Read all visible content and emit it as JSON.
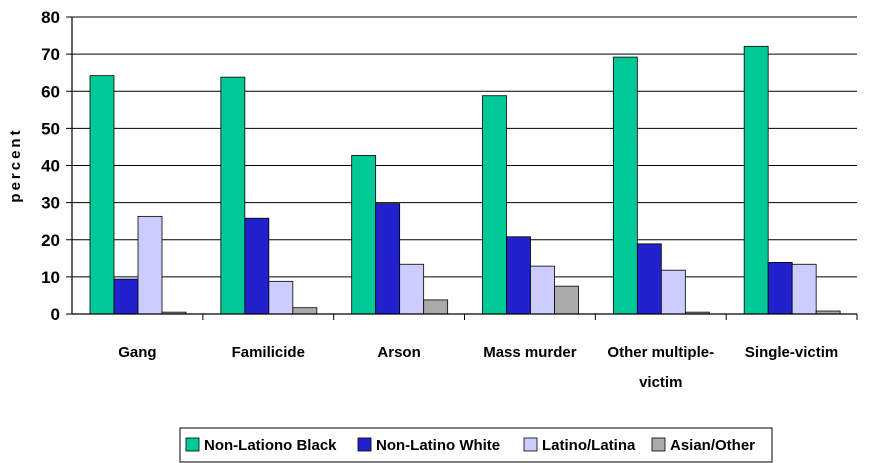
{
  "chart_data": {
    "type": "bar",
    "title": "",
    "xlabel": "",
    "ylabel": "percent",
    "ylim": [
      0,
      80
    ],
    "yticks": [
      0,
      10,
      20,
      30,
      40,
      50,
      60,
      70,
      80
    ],
    "grid": true,
    "legend_position": "bottom",
    "categories": [
      "Gang",
      "Familicide",
      "Arson",
      "Mass murder",
      "Other multiple-victim",
      "Single-victim"
    ],
    "category_lines": [
      [
        "Gang"
      ],
      [
        "Familicide"
      ],
      [
        "Arson"
      ],
      [
        "Mass murder"
      ],
      [
        "Other multiple-",
        "victim"
      ],
      [
        "Single-victim"
      ]
    ],
    "series": [
      {
        "name": "Non-Lationo Black",
        "color": "#00c896",
        "values": [
          64.2,
          63.8,
          42.7,
          58.8,
          69.2,
          72.1
        ]
      },
      {
        "name": "Non-Latino White",
        "color": "#2222cc",
        "values": [
          9.4,
          25.8,
          29.7,
          20.8,
          18.9,
          13.9
        ]
      },
      {
        "name": "Latino/Latina",
        "color": "#ccccff",
        "values": [
          26.3,
          8.8,
          13.4,
          12.9,
          11.8,
          13.4
        ]
      },
      {
        "name": "Asian/Other",
        "color": "#aaaaaa",
        "values": [
          0.5,
          1.7,
          3.8,
          7.5,
          0.5,
          0.8
        ]
      }
    ]
  }
}
